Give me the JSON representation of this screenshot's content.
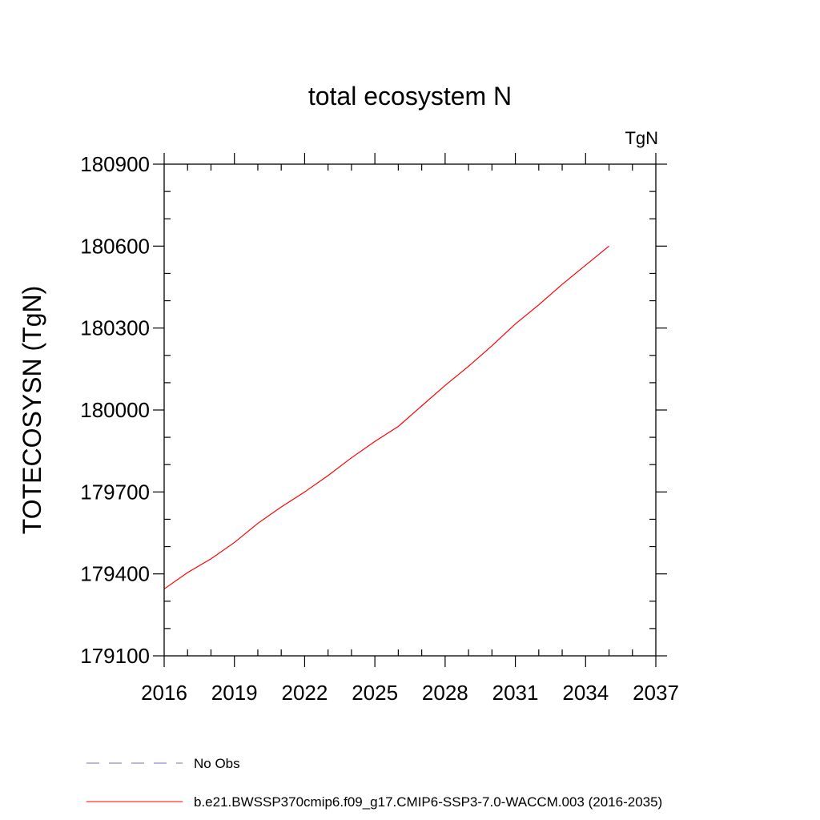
{
  "chart_data": {
    "type": "line",
    "title": "total ecosystem N",
    "units_label": "TgN",
    "ylabel": "TOTECOSYSN  (TgN)",
    "xlabel": "",
    "xlim": [
      2016,
      2037
    ],
    "ylim": [
      179100,
      180900
    ],
    "x_ticks": [
      2016,
      2019,
      2022,
      2025,
      2028,
      2031,
      2034,
      2037
    ],
    "y_ticks": [
      179100,
      179400,
      179700,
      180000,
      180300,
      180600,
      180900
    ],
    "grid": false,
    "legend_placement": "bottom",
    "series": [
      {
        "name": "b.e21.BWSSP370cmip6.f09_g17.CMIP6-SSP3-7.0-WACCM.003 (2016-2035)",
        "color": "#ff0000",
        "style": "solid",
        "x": [
          2016,
          2017,
          2018,
          2019,
          2020,
          2021,
          2022,
          2023,
          2024,
          2025,
          2026,
          2027,
          2028,
          2029,
          2030,
          2031,
          2032,
          2033,
          2034,
          2035
        ],
        "y": [
          179345,
          179405,
          179455,
          179515,
          179585,
          179645,
          179700,
          179760,
          179825,
          179885,
          179940,
          180015,
          180090,
          180160,
          180235,
          180315,
          180385,
          180460,
          180530,
          180600
        ]
      },
      {
        "name": "No Obs",
        "color": "#6f6fb8",
        "style": "dashed",
        "x": [],
        "y": []
      }
    ]
  }
}
